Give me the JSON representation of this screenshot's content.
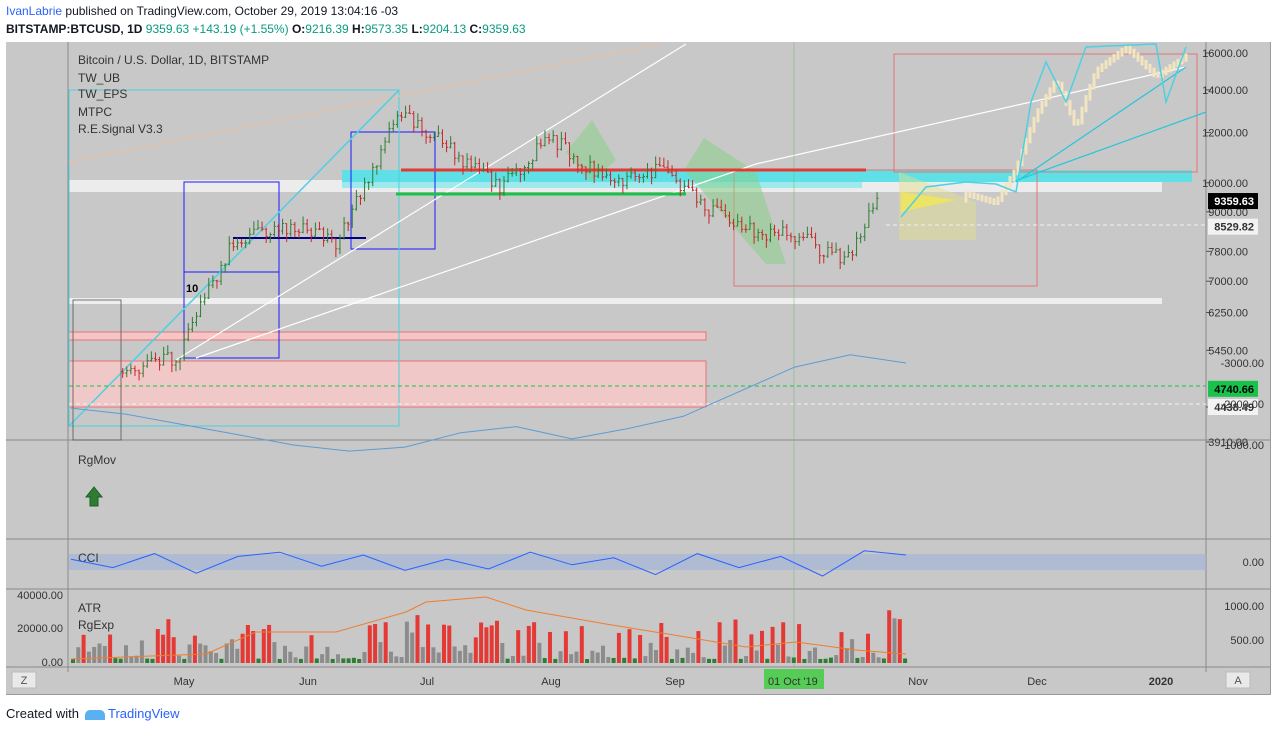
{
  "header": {
    "author": "IvanLabrie",
    "published_text": "published on TradingView.com, October 29, 2019 13:04:16 -03",
    "symbol": "BITSTAMP:BTCUSD, 1D",
    "last": "9359.63",
    "change": "+143.19 (+1.55%)",
    "o_label": "O:",
    "o_value": "9216.39",
    "h_label": "H:",
    "h_value": "9573.35",
    "l_label": "L:",
    "l_value": "9204.13",
    "c_label": "C:",
    "c_value": "9359.63"
  },
  "legend": {
    "title": "Bitcoin / U.S. Dollar, 1D, BITSTAMP",
    "studies": [
      "TW_UB",
      "TW_EPS",
      "MTPC",
      "R.E.Signal V3.3"
    ]
  },
  "pane_labels": {
    "rgmov": "RgMov",
    "cci": "CCI",
    "atr": "ATR",
    "rgexp": "RgExp"
  },
  "annotation_text": "10",
  "x_axis": {
    "labels": [
      "May",
      "Jun",
      "Jul",
      "Aug",
      "Sep",
      "01 Oct '19",
      "Nov",
      "Dec",
      "2020"
    ],
    "highlight_label": "01 Oct '19",
    "z_button": "Z",
    "a_button": "A"
  },
  "footer": {
    "prefix": "Created with",
    "brand": "TradingView"
  },
  "colors": {
    "up": "#2e7d32",
    "down": "#c62828",
    "pane_bg": "#c8c8c8",
    "cyan": "#4dd0e1",
    "green_hl": "#19c24a"
  },
  "chart_data": [
    {
      "type": "line",
      "name": "price",
      "title": "Bitcoin / U.S. Dollar, 1D, BITSTAMP",
      "x": [
        "2019-04-15",
        "2019-04-29",
        "2019-05-13",
        "2019-05-27",
        "2019-06-10",
        "2019-06-26",
        "2019-07-08",
        "2019-07-22",
        "2019-08-05",
        "2019-08-19",
        "2019-09-02",
        "2019-09-23",
        "2019-10-07",
        "2019-10-21",
        "2019-10-29"
      ],
      "y": [
        5050,
        5300,
        7900,
        8600,
        8100,
        12800,
        11500,
        9800,
        11800,
        10100,
        10400,
        8400,
        8300,
        7500,
        9359.63
      ],
      "y_scale": "log",
      "y_ticks": [
        16000,
        14000,
        12000,
        10000,
        9000,
        7800,
        7000,
        6250,
        5450,
        4438.49,
        3910
      ],
      "price_labels": [
        {
          "value": "9359.63",
          "type": "last"
        },
        {
          "value": "8529.82",
          "type": "level"
        },
        {
          "value": "4740.66",
          "type": "support"
        },
        {
          "value": "4438.49",
          "type": "level"
        }
      ]
    },
    {
      "type": "line",
      "name": "RgMov",
      "y": [
        -1900,
        -1750,
        -1500,
        -1250,
        -1000,
        -850,
        -950,
        -1300,
        -1450,
        -1150,
        -1400,
        -1700,
        -2300,
        -2900,
        -3200,
        -3000
      ],
      "y_ticks": [
        "-1000.00",
        "-2000.00",
        "-3000.00"
      ]
    },
    {
      "type": "line",
      "name": "CCI",
      "y": [
        20,
        -40,
        60,
        -80,
        40,
        70,
        -30,
        50,
        -60,
        20,
        -50,
        70,
        -20,
        30,
        -90,
        60,
        -40,
        40,
        -100,
        80,
        50
      ],
      "y_ticks": [
        "0.00"
      ]
    },
    {
      "type": "bar",
      "name": "ATR",
      "left_ticks": [
        "40000.00",
        "20000.00",
        "0.00"
      ],
      "right_ticks": [
        "1000.00",
        "500.00"
      ],
      "note": "volume-style bars with ATR overlay"
    }
  ]
}
